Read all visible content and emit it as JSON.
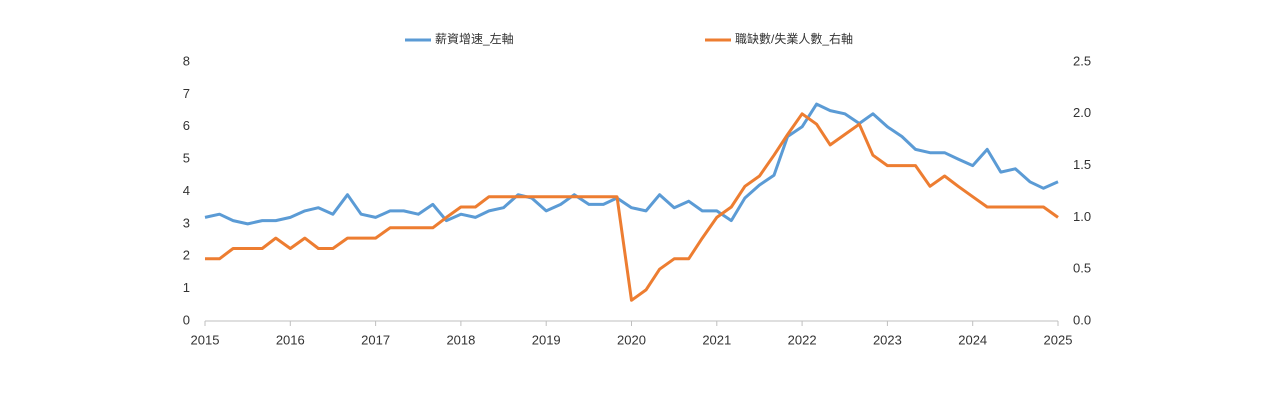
{
  "chart_data": {
    "type": "line",
    "x": [
      2015,
      2015.17,
      2015.33,
      2015.5,
      2015.67,
      2015.83,
      2016,
      2016.17,
      2016.33,
      2016.5,
      2016.67,
      2016.83,
      2017,
      2017.17,
      2017.33,
      2017.5,
      2017.67,
      2017.83,
      2018,
      2018.17,
      2018.33,
      2018.5,
      2018.67,
      2018.83,
      2019,
      2019.17,
      2019.33,
      2019.5,
      2019.67,
      2019.83,
      2020,
      2020.17,
      2020.33,
      2020.5,
      2020.67,
      2020.83,
      2021,
      2021.17,
      2021.33,
      2021.5,
      2021.67,
      2021.83,
      2022,
      2022.17,
      2022.33,
      2022.5,
      2022.67,
      2022.83,
      2023,
      2023.17,
      2023.33,
      2023.5,
      2023.67,
      2023.83,
      2024,
      2024.17,
      2024.33,
      2024.5,
      2024.67,
      2024.83,
      2025
    ],
    "xlim": [
      2015,
      2025
    ],
    "xticks": [
      2015,
      2016,
      2017,
      2018,
      2019,
      2020,
      2021,
      2022,
      2023,
      2024,
      2025
    ],
    "ylim": [
      0,
      8
    ],
    "yticks": [
      0,
      1,
      2,
      3,
      4,
      5,
      6,
      7,
      8
    ],
    "y2lim": [
      0,
      2.5
    ],
    "y2ticks": [
      {
        "value": 0,
        "label": "0.0"
      },
      0.5,
      {
        "value": 1,
        "label": "1.0"
      },
      1.5,
      {
        "value": 2,
        "label": "2.0"
      },
      2.5
    ],
    "legend": "top",
    "series": [
      {
        "name": "薪資增速_左軸",
        "color": "#5b9bd5",
        "axis": "y",
        "values": [
          3.2,
          3.3,
          3.1,
          3.0,
          3.1,
          3.1,
          3.2,
          3.4,
          3.5,
          3.3,
          3.9,
          3.3,
          3.2,
          3.4,
          3.4,
          3.3,
          3.6,
          3.1,
          3.3,
          3.2,
          3.4,
          3.5,
          3.9,
          3.8,
          3.4,
          3.6,
          3.9,
          3.6,
          3.6,
          3.8,
          3.5,
          3.4,
          3.9,
          3.5,
          3.7,
          3.4,
          3.4,
          3.1,
          3.8,
          4.2,
          4.5,
          5.7,
          6.0,
          6.7,
          6.5,
          6.4,
          6.1,
          6.4,
          6.0,
          5.7,
          5.3,
          5.2,
          5.2,
          5.0,
          4.8,
          5.3,
          4.6,
          4.7,
          4.3,
          4.1,
          4.3
        ]
      },
      {
        "name": "職缺數/失業人數_右軸",
        "color": "#ed7d31",
        "axis": "y2",
        "values": [
          0.6,
          0.6,
          0.7,
          0.7,
          0.7,
          0.8,
          0.7,
          0.8,
          0.7,
          0.7,
          0.8,
          0.8,
          0.8,
          0.9,
          0.9,
          0.9,
          0.9,
          1.0,
          1.1,
          1.1,
          1.2,
          1.2,
          1.2,
          1.2,
          1.2,
          1.2,
          1.2,
          1.2,
          1.2,
          1.2,
          0.2,
          0.3,
          0.5,
          0.6,
          0.6,
          0.8,
          1.0,
          1.1,
          1.3,
          1.4,
          1.6,
          1.8,
          2.0,
          1.9,
          1.7,
          1.8,
          1.9,
          1.6,
          1.5,
          1.5,
          1.5,
          1.3,
          1.4,
          1.3,
          1.2,
          1.1,
          1.1,
          1.1,
          1.1,
          1.1,
          1.0
        ]
      }
    ]
  }
}
